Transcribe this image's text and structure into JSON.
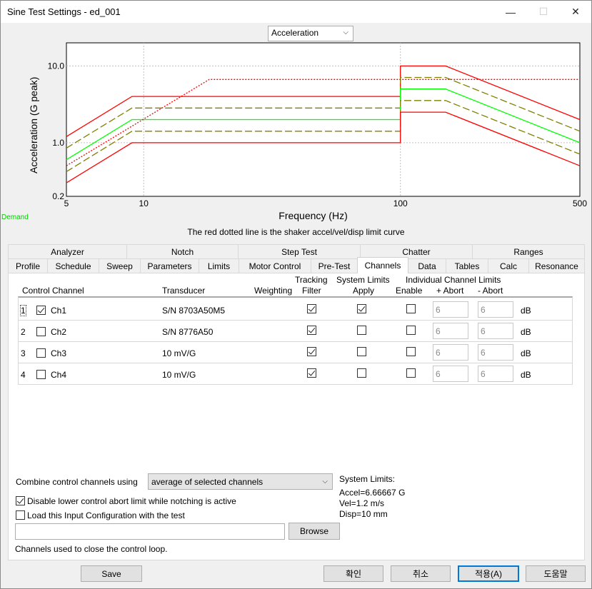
{
  "window": {
    "title": "Sine Test Settings - ed_001",
    "minimize": "—",
    "maximize": "☐",
    "close": "✕"
  },
  "plot_selector": {
    "value": "Acceleration"
  },
  "chart_data": {
    "type": "line",
    "xlabel": "Frequency (Hz)",
    "ylabel": "Acceleration (G peak)",
    "x_scale": "log",
    "y_scale": "log",
    "xlim": [
      5,
      500
    ],
    "ylim": [
      0.2,
      20
    ],
    "x_ticks": [
      "5",
      "10",
      "100",
      "500"
    ],
    "y_ticks": [
      "0.2",
      "1.0",
      "10.0"
    ],
    "grid": "dotted",
    "series": [
      {
        "color": "#ff0000",
        "style": "solid",
        "x": [
          5,
          9,
          100,
          100,
          150,
          500
        ],
        "y": [
          1.2,
          4,
          4,
          10,
          10,
          2
        ]
      },
      {
        "color": "#808000",
        "style": "dashed",
        "x": [
          5,
          9,
          100,
          100,
          150,
          500
        ],
        "y": [
          0.85,
          2.83,
          2.83,
          7.07,
          7.07,
          1.41
        ]
      },
      {
        "color": "#00ff00",
        "style": "solid",
        "x": [
          5,
          9,
          100,
          100,
          150,
          500
        ],
        "y": [
          0.6,
          2,
          2,
          5,
          5,
          1
        ]
      },
      {
        "color": "#808000",
        "style": "dashed",
        "x": [
          5,
          9,
          100,
          100,
          150,
          500
        ],
        "y": [
          0.42,
          1.41,
          1.41,
          3.54,
          3.54,
          0.71
        ]
      },
      {
        "color": "#ff0000",
        "style": "solid",
        "x": [
          5,
          9,
          100,
          100,
          150,
          500
        ],
        "y": [
          0.3,
          1,
          1,
          2.5,
          2.5,
          0.5
        ]
      },
      {
        "color": "#ff0000",
        "style": "dotted",
        "x": [
          5,
          18,
          500
        ],
        "y": [
          0.5,
          6.67,
          6.67
        ]
      }
    ]
  },
  "demand_label": "Demand",
  "caption": "The red dotted line is the shaker accel/vel/disp limit curve",
  "tabs_row1": [
    "Analyzer",
    "Notch",
    "Step Test",
    "Chatter",
    "Ranges"
  ],
  "tabs_row2": [
    "Profile",
    "Schedule",
    "Sweep",
    "Parameters",
    "Limits",
    "Motor Control",
    "Pre-Test",
    "Channels",
    "Data",
    "Tables",
    "Calc",
    "Resonance"
  ],
  "table": {
    "headers": {
      "control_channel": "Control Channel",
      "transducer": "Transducer",
      "weighting": "Weighting",
      "tracking": "Tracking",
      "filter": "Filter",
      "system_limits": "System Limits",
      "apply": "Apply",
      "enable": "Enable",
      "individual": "Individual Channel Limits",
      "plus_abort": "+ Abort",
      "minus_abort": "- Abort"
    },
    "unit": "dB",
    "rows": [
      {
        "num": "1",
        "name": "Ch1",
        "transducer": "S/N 8703A50M5",
        "control": true,
        "tracking": true,
        "sys_apply": true,
        "enable": false,
        "plus": "6",
        "minus": "6"
      },
      {
        "num": "2",
        "name": "Ch2",
        "transducer": "S/N 8776A50",
        "control": false,
        "tracking": true,
        "sys_apply": false,
        "enable": false,
        "plus": "6",
        "minus": "6"
      },
      {
        "num": "3",
        "name": "Ch3",
        "transducer": "10 mV/G",
        "control": false,
        "tracking": true,
        "sys_apply": false,
        "enable": false,
        "plus": "6",
        "minus": "6"
      },
      {
        "num": "4",
        "name": "Ch4",
        "transducer": "10 mV/G",
        "control": false,
        "tracking": true,
        "sys_apply": false,
        "enable": false,
        "plus": "6",
        "minus": "6"
      }
    ]
  },
  "combine": {
    "label": "Combine control channels using",
    "value": "average of selected channels"
  },
  "disable_lower": {
    "label": "Disable lower control abort limit while notching is active",
    "checked": true
  },
  "load_input": {
    "label": "Load this Input Configuration with the test",
    "checked": false
  },
  "path_value": "",
  "browse_label": "Browse",
  "status_text": "Channels used to close the control loop.",
  "system_limits": {
    "title": "System Limits:",
    "accel": "Accel=6.66667 G",
    "vel": "Vel=1.2 m/s",
    "disp": "Disp=10 mm"
  },
  "buttons": {
    "save": "Save",
    "ok": "확인",
    "cancel": "취소",
    "apply": "적용(A)",
    "help": "도움말"
  }
}
